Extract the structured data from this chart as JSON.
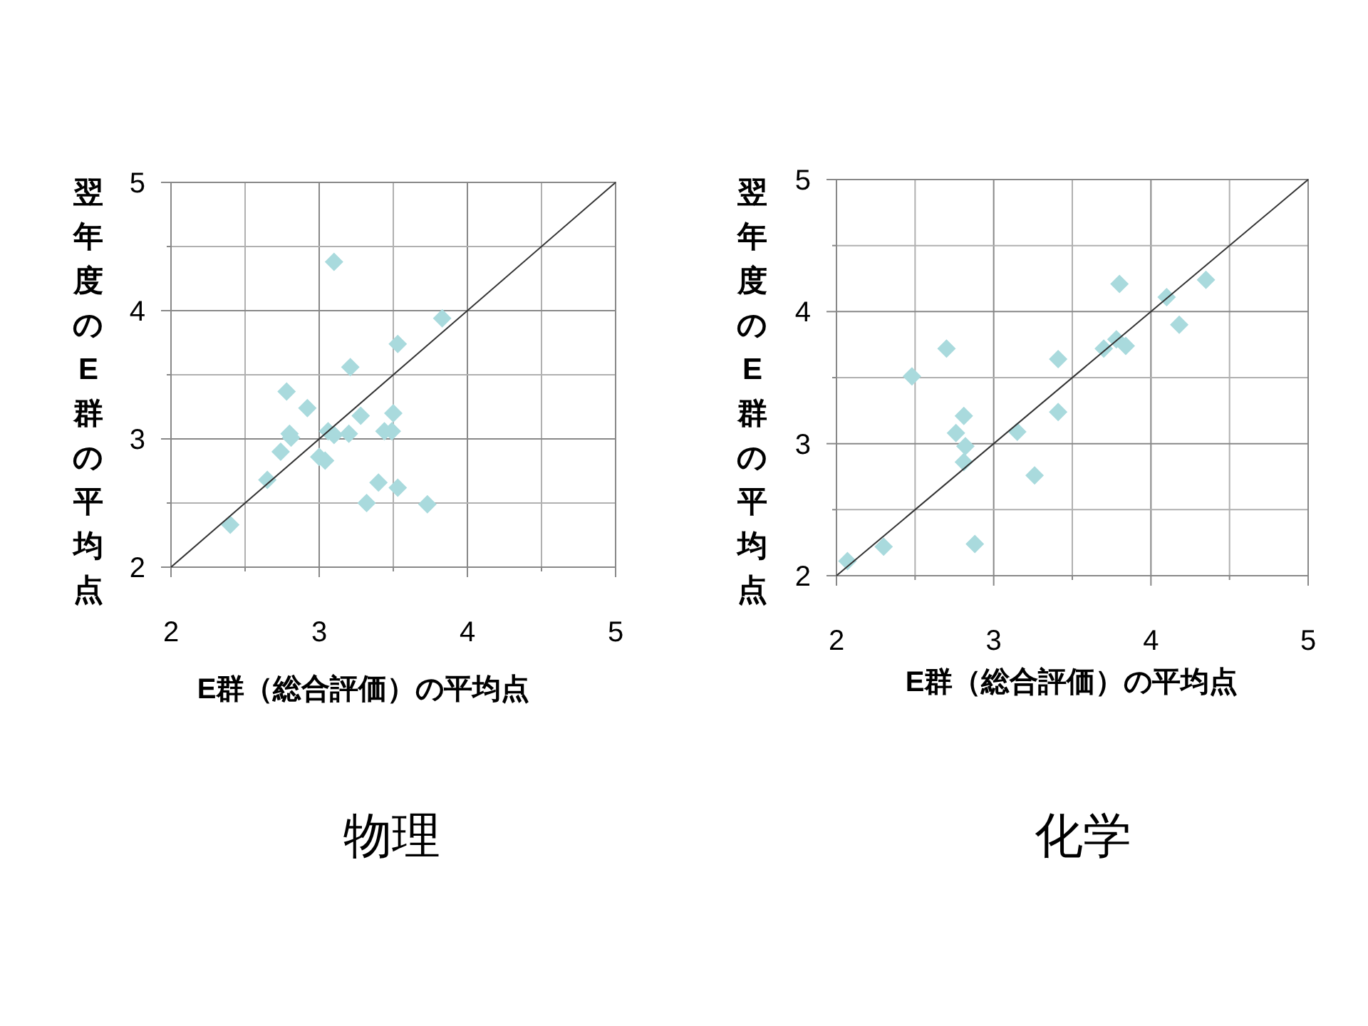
{
  "chart_data": [
    {
      "type": "scatter",
      "title": "物理",
      "xlabel": "E群（総合評価）の平均点",
      "ylabel": "翌年度のE群の平均点",
      "xlim": [
        2,
        5
      ],
      "ylim": [
        2,
        5
      ],
      "xticks": [
        2,
        {
          "value": 2.5,
          "label": null
        },
        3,
        {
          "value": 3.5,
          "label": null
        },
        4,
        {
          "value": 4.5,
          "label": null
        },
        5
      ],
      "yticks": [
        2,
        {
          "value": 2.5,
          "label": null
        },
        3,
        {
          "value": 3.5,
          "label": null
        },
        4,
        {
          "value": 4.5,
          "label": null
        },
        5
      ],
      "grid": true,
      "marker": "diamond",
      "series": [
        {
          "color": "#a9dadd",
          "x": [
            2.4,
            2.65,
            2.74,
            2.78,
            2.8,
            2.81,
            2.92,
            3.0,
            3.04,
            3.1,
            3.06,
            3.1,
            3.21,
            3.2,
            3.28,
            3.32,
            3.4,
            3.44,
            3.49,
            3.5,
            3.53,
            3.53,
            3.73,
            3.83
          ],
          "values": [
            2.33,
            2.68,
            2.9,
            3.37,
            3.04,
            3.01,
            3.24,
            2.86,
            2.83,
            4.38,
            3.06,
            3.03,
            3.56,
            3.04,
            3.18,
            2.5,
            2.66,
            3.06,
            3.06,
            3.2,
            3.74,
            2.62,
            2.49,
            3.94
          ]
        },
        {
          "type": "line",
          "color": "#333333",
          "marker": "none",
          "x": [
            2,
            5
          ],
          "values": [
            2,
            5
          ]
        }
      ]
    },
    {
      "type": "scatter",
      "title": "化学",
      "xlabel": "E群（総合評価）の平均点",
      "ylabel": "翌年度のE群の平均点",
      "xlim": [
        2,
        5
      ],
      "ylim": [
        2,
        5
      ],
      "xticks": [
        2,
        {
          "value": 2.5,
          "label": null
        },
        3,
        {
          "value": 3.5,
          "label": null
        },
        4,
        {
          "value": 4.5,
          "label": null
        },
        5
      ],
      "yticks": [
        2,
        {
          "value": 2.5,
          "label": null
        },
        3,
        {
          "value": 3.5,
          "label": null
        },
        4,
        {
          "value": 4.5,
          "label": null
        },
        5
      ],
      "grid": true,
      "marker": "diamond",
      "series": [
        {
          "color": "#a9dadd",
          "x": [
            2.07,
            2.3,
            2.48,
            2.7,
            2.81,
            2.76,
            2.82,
            2.81,
            2.88,
            3.15,
            3.26,
            3.41,
            3.41,
            3.7,
            3.78,
            3.8,
            3.84,
            4.1,
            4.18,
            4.35
          ],
          "values": [
            2.11,
            2.22,
            3.51,
            3.72,
            3.21,
            3.08,
            2.98,
            2.86,
            2.24,
            3.09,
            2.76,
            3.64,
            3.24,
            3.72,
            3.79,
            4.21,
            3.74,
            4.11,
            3.9,
            4.24
          ]
        },
        {
          "type": "line",
          "color": "#333333",
          "marker": "none",
          "x": [
            2,
            5
          ],
          "values": [
            2,
            5
          ]
        }
      ]
    }
  ]
}
